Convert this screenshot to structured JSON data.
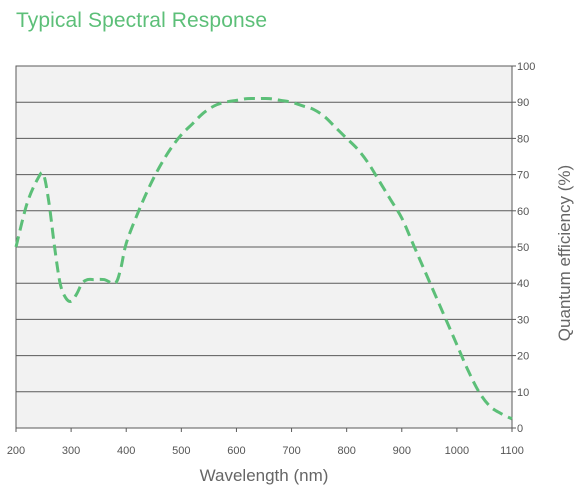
{
  "chart_data": {
    "type": "line",
    "title": "Typical Spectral Response",
    "xlabel": "Wavelength (nm)",
    "ylabel": "Quantum efficiency (%)",
    "xlim": [
      200,
      1100
    ],
    "ylim": [
      0,
      100
    ],
    "x_ticks": [
      200,
      300,
      400,
      500,
      600,
      700,
      800,
      900,
      1000,
      1100
    ],
    "y_ticks": [
      0,
      10,
      20,
      30,
      40,
      50,
      60,
      70,
      80,
      90,
      100
    ],
    "y_axis_side": "right",
    "grid": "horizontal",
    "line_style": "dashed",
    "colors": {
      "line": "#5cbf78",
      "title": "#5cbf78",
      "plot_background": "#f2f2f2",
      "grid": "#5a5a5a"
    },
    "series": [
      {
        "x": [
          200,
          220,
          240,
          250,
          260,
          270,
          280,
          290,
          300,
          310,
          320,
          330,
          340,
          360,
          380,
          390,
          400,
          420,
          440,
          460,
          480,
          500,
          520,
          540,
          560,
          580,
          600,
          620,
          640,
          660,
          680,
          700,
          720,
          740,
          760,
          780,
          800,
          820,
          840,
          860,
          880,
          900,
          920,
          940,
          960,
          980,
          1000,
          1020,
          1040,
          1060,
          1080,
          1100
        ],
        "y": [
          50,
          62,
          69,
          70,
          62,
          50,
          40,
          36,
          35,
          37,
          40,
          41,
          41,
          41,
          40,
          44,
          51,
          59,
          66,
          72,
          77,
          81,
          84,
          87,
          89,
          90,
          90.5,
          91,
          91,
          91,
          90.5,
          90,
          89,
          88,
          86,
          83,
          80,
          77,
          73,
          68,
          63,
          58,
          51,
          44,
          37,
          30,
          23,
          16,
          10,
          6,
          4,
          2.5
        ]
      }
    ]
  }
}
